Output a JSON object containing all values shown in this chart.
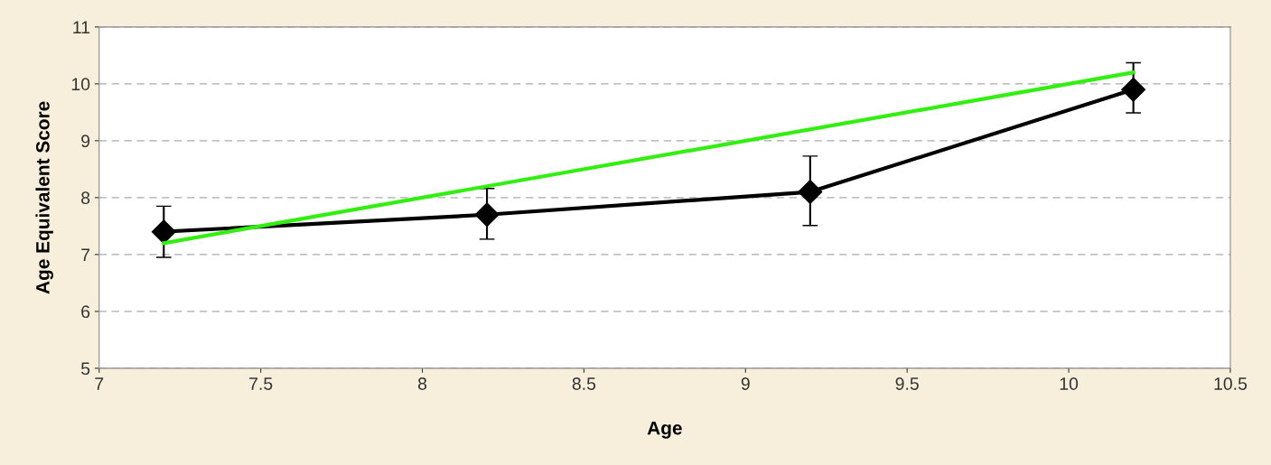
{
  "chart_data": {
    "type": "line",
    "xlabel": "Age",
    "ylabel": "Age Equivalent Score",
    "x": [
      7.2,
      8.2,
      9.2,
      10.2
    ],
    "series": [
      {
        "color": "#000000",
        "values": [
          7.4,
          7.7,
          8.1,
          9.9
        ],
        "errors": [
          [
            6.95,
            7.85
          ],
          [
            7.27,
            8.16
          ],
          [
            7.51,
            8.73
          ],
          [
            9.49,
            10.37
          ]
        ],
        "marker": "diamond"
      },
      {
        "color": "#33ee11",
        "x": [
          7.2,
          10.2
        ],
        "values": [
          7.2,
          10.2
        ],
        "marker": "none"
      }
    ],
    "xlim": [
      7,
      10.5
    ],
    "xticks": [
      7,
      7.5,
      8,
      8.5,
      9,
      9.5,
      10,
      10.5
    ],
    "ylim": [
      5,
      11
    ],
    "yticks": [
      5,
      6,
      7,
      8,
      9,
      10,
      11
    ],
    "grid": "y",
    "line_style": "solid",
    "legend": false
  }
}
